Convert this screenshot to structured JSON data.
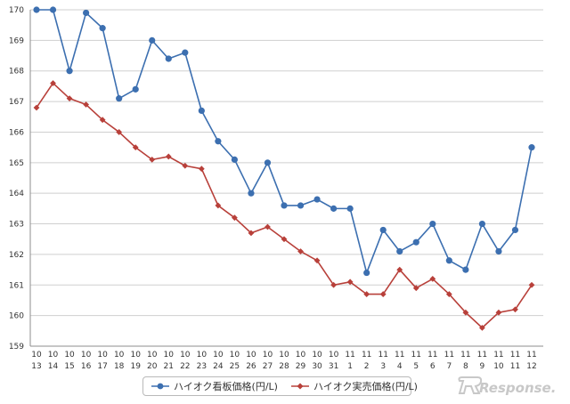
{
  "chart_data": {
    "type": "line",
    "title": "",
    "xlabel": "",
    "ylabel": "",
    "ylim": [
      159,
      170
    ],
    "yticks": [
      159,
      160,
      161,
      162,
      163,
      164,
      165,
      166,
      167,
      168,
      169,
      170
    ],
    "grid": true,
    "legend_position": "bottom",
    "categories": [
      [
        "10",
        "13"
      ],
      [
        "10",
        "14"
      ],
      [
        "10",
        "15"
      ],
      [
        "10",
        "16"
      ],
      [
        "10",
        "17"
      ],
      [
        "10",
        "18"
      ],
      [
        "10",
        "19"
      ],
      [
        "10",
        "20"
      ],
      [
        "10",
        "21"
      ],
      [
        "10",
        "22"
      ],
      [
        "10",
        "23"
      ],
      [
        "10",
        "24"
      ],
      [
        "10",
        "25"
      ],
      [
        "10",
        "26"
      ],
      [
        "10",
        "27"
      ],
      [
        "10",
        "28"
      ],
      [
        "10",
        "29"
      ],
      [
        "10",
        "30"
      ],
      [
        "10",
        "31"
      ],
      [
        "11",
        "1"
      ],
      [
        "11",
        "2"
      ],
      [
        "11",
        "3"
      ],
      [
        "11",
        "4"
      ],
      [
        "11",
        "5"
      ],
      [
        "11",
        "6"
      ],
      [
        "11",
        "7"
      ],
      [
        "11",
        "8"
      ],
      [
        "11",
        "9"
      ],
      [
        "11",
        "10"
      ],
      [
        "11",
        "11"
      ],
      [
        "11",
        "12"
      ]
    ],
    "series": [
      {
        "name": "ハイオク看板価格(円/L)",
        "color": "#3c6fb0",
        "marker": "circle",
        "values": [
          170.0,
          170.0,
          168.0,
          169.9,
          169.4,
          167.1,
          167.4,
          169.0,
          168.4,
          168.6,
          166.7,
          165.7,
          165.1,
          164.0,
          165.0,
          163.6,
          163.6,
          163.8,
          163.5,
          163.5,
          161.4,
          162.8,
          162.1,
          162.4,
          163.0,
          161.8,
          161.5,
          163.0,
          162.1,
          162.8,
          165.5
        ]
      },
      {
        "name": "ハイオク実売価格(円/L)",
        "color": "#b8403a",
        "marker": "diamond",
        "values": [
          166.8,
          167.6,
          167.1,
          166.9,
          166.4,
          166.0,
          165.5,
          165.1,
          165.2,
          164.9,
          164.8,
          163.6,
          163.2,
          162.7,
          162.9,
          162.5,
          162.1,
          161.8,
          161.0,
          161.1,
          160.7,
          160.7,
          161.5,
          160.9,
          161.2,
          160.7,
          160.1,
          159.6,
          160.1,
          160.2,
          161.0
        ]
      }
    ]
  },
  "watermark": {
    "text": "Response."
  }
}
